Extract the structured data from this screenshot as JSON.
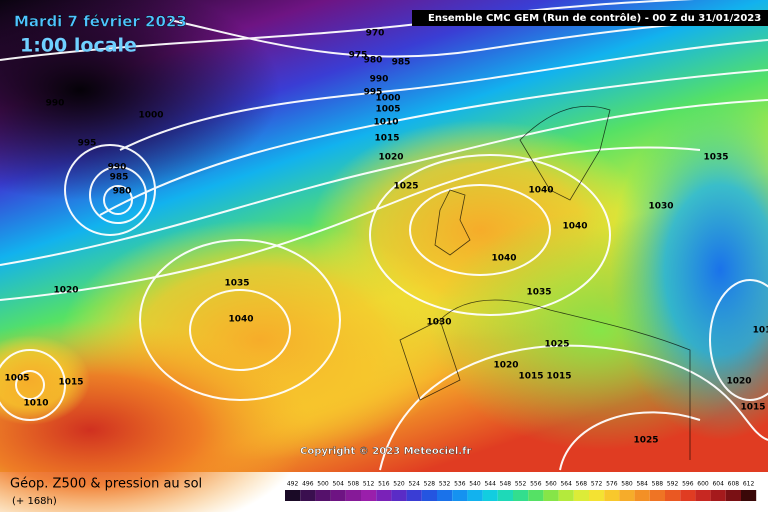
{
  "header": {
    "title": "Mardi 7 février 2023",
    "time": "1:00 locale",
    "run": "Ensemble CMC GEM  (Run de contrôle)  -  00 Z du 31/01/2023"
  },
  "map": {
    "isobar_labels": [
      970,
      975,
      980,
      985,
      990,
      995,
      1000,
      1005,
      1010,
      1015,
      1020,
      1025,
      990,
      1000,
      995,
      990,
      985,
      980,
      1020,
      1035,
      1040,
      1030,
      1040,
      1040,
      1040,
      1035,
      1025,
      1020,
      1015,
      1015,
      1035,
      1030,
      1020,
      1015,
      1025,
      1005,
      1010,
      1015,
      101
    ]
  },
  "footer": {
    "title": "Géop. Z500 & pression au sol",
    "lead": "(+ 168h)",
    "copyright": "Copyright © 2023 Meteociel.fr"
  },
  "legend": {
    "labels": [
      492,
      496,
      500,
      504,
      508,
      512,
      516,
      520,
      524,
      528,
      532,
      536,
      540,
      544,
      548,
      552,
      556,
      560,
      564,
      568,
      572,
      576,
      580,
      584,
      588,
      592,
      596,
      600,
      604,
      608,
      612
    ],
    "colors": [
      "#1a0a26",
      "#3a0f4f",
      "#55116b",
      "#6e1483",
      "#861a98",
      "#9a1fab",
      "#7a22b8",
      "#5a2cc6",
      "#3a3dd4",
      "#2455e0",
      "#1a72ea",
      "#1592f0",
      "#12b2ee",
      "#12cde0",
      "#1ed9b8",
      "#33de8e",
      "#55e165",
      "#86e548",
      "#b4ea3c",
      "#dcec38",
      "#f4e232",
      "#f8c82c",
      "#f6ac2a",
      "#f39026",
      "#ef7424",
      "#ea5822",
      "#e03c22",
      "#c72822",
      "#a51a1c",
      "#7a1014",
      "#3a0808"
    ]
  }
}
